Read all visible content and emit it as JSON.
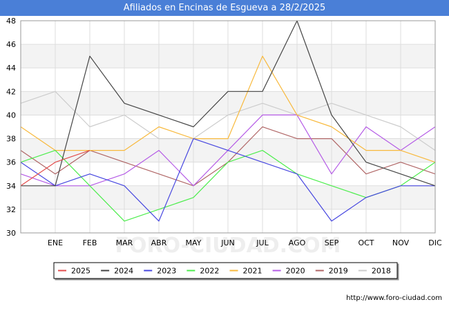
{
  "page": {
    "title": "Afiliados en Encinas de Esgueva a 28/2/2025",
    "source": "http://www.foro-ciudad.com"
  },
  "watermark": "FORO-CIUDAD.COM",
  "chart_data": {
    "type": "line",
    "title": "Afiliados en Encinas de Esgueva a 28/2/2025",
    "xlabel": "",
    "ylabel": "",
    "ylim": [
      30,
      48
    ],
    "yticks": [
      30,
      32,
      34,
      36,
      38,
      40,
      42,
      44,
      46,
      48
    ],
    "x": [
      "",
      "ENE",
      "FEB",
      "MAR",
      "ABR",
      "MAY",
      "JUN",
      "JUL",
      "AGO",
      "SEP",
      "OCT",
      "NOV",
      "DIC"
    ],
    "grid": true,
    "legend_position": "bottom",
    "series": [
      {
        "name": "2025",
        "color": "#e34c4c",
        "values": [
          34,
          36,
          37,
          null,
          null,
          null,
          null,
          null,
          null,
          null,
          null,
          null,
          null
        ]
      },
      {
        "name": "2024",
        "color": "#444444",
        "values": [
          34,
          34,
          45,
          41,
          40,
          39,
          42,
          42,
          48,
          40,
          36,
          35,
          34
        ]
      },
      {
        "name": "2023",
        "color": "#4747e0",
        "values": [
          36,
          34,
          35,
          34,
          31,
          38,
          37,
          36,
          35,
          31,
          33,
          34,
          34
        ]
      },
      {
        "name": "2022",
        "color": "#4ced4c",
        "values": [
          36,
          37,
          34,
          31,
          32,
          33,
          36,
          37,
          35,
          34,
          33,
          34,
          36
        ]
      },
      {
        "name": "2021",
        "color": "#f8b93c",
        "values": [
          39,
          37,
          37,
          37,
          39,
          38,
          38,
          45,
          40,
          39,
          37,
          37,
          36
        ]
      },
      {
        "name": "2020",
        "color": "#b55ce6",
        "values": [
          35,
          34,
          34,
          35,
          37,
          34,
          37,
          40,
          40,
          35,
          39,
          37,
          39
        ]
      },
      {
        "name": "2019",
        "color": "#b06666",
        "values": [
          37,
          35,
          37,
          36,
          35,
          34,
          36,
          39,
          38,
          38,
          35,
          36,
          35
        ]
      },
      {
        "name": "2018",
        "color": "#cccccc",
        "values": [
          41,
          42,
          39,
          40,
          38,
          38,
          40,
          41,
          40,
          41,
          40,
          39,
          37
        ]
      }
    ]
  }
}
